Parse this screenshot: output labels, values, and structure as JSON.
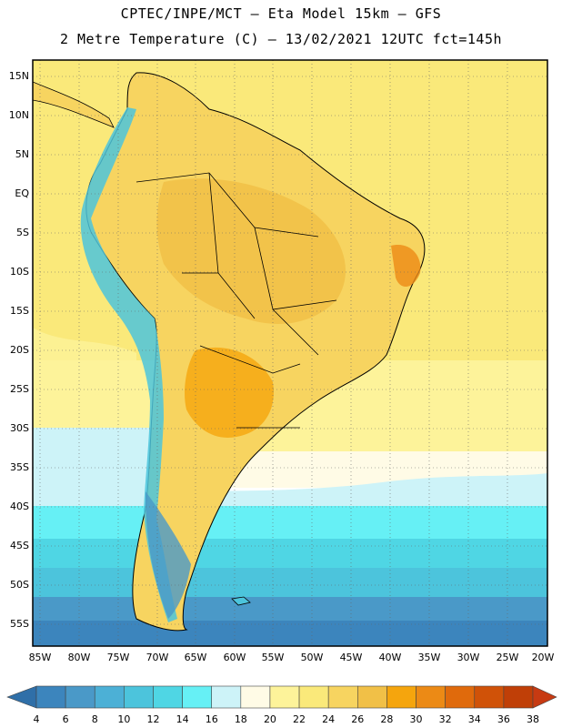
{
  "header": {
    "line1": "CPTEC/INPE/MCT –  Eta Model 15km – GFS",
    "line2": "2 Metre Temperature (C) – 13/02/2021 12UTC fct=145h"
  },
  "map": {
    "lat_labels": [
      "15N",
      "10N",
      "5N",
      "EQ",
      "5S",
      "10S",
      "15S",
      "20S",
      "25S",
      "30S",
      "35S",
      "40S",
      "45S",
      "50S",
      "55S"
    ],
    "lon_labels": [
      "85W",
      "80W",
      "75W",
      "70W",
      "65W",
      "60W",
      "55W",
      "50W",
      "45W",
      "40W",
      "35W",
      "30W",
      "25W",
      "20W"
    ]
  },
  "colorbar": {
    "labels": [
      "4",
      "6",
      "8",
      "10",
      "12",
      "14",
      "16",
      "18",
      "20",
      "22",
      "24",
      "26",
      "28",
      "30",
      "32",
      "34",
      "36",
      "38"
    ],
    "colors": [
      "#2f6fa8",
      "#3c85bd",
      "#4a99c8",
      "#4cb0d6",
      "#4cc4dc",
      "#4fd6e4",
      "#66f0f5",
      "#cdf3f8",
      "#fffbe6",
      "#fdf39a",
      "#fae97a",
      "#f7d460",
      "#f1c047",
      "#f5a50d",
      "#ec8a15",
      "#e06a0c",
      "#d05208",
      "#c03f07",
      "#c73a12"
    ]
  }
}
